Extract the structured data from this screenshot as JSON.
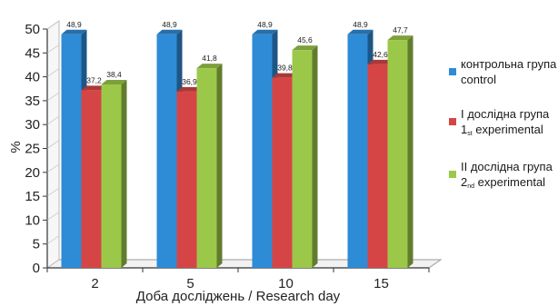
{
  "chart_data": {
    "type": "bar",
    "title": "",
    "xlabel": "Доба досліджень / Research day",
    "ylabel": "%",
    "ylim": [
      0,
      50
    ],
    "yticks": [
      0,
      5,
      10,
      15,
      20,
      25,
      30,
      35,
      40,
      45,
      50
    ],
    "categories": [
      "2",
      "5",
      "10",
      "15"
    ],
    "grid": false,
    "legend_position": "right",
    "series": [
      {
        "name": "контрольна група / control",
        "color": "#2e8bd6",
        "values": [
          48.9,
          48.9,
          48.9,
          48.9
        ],
        "labels": [
          "48,9",
          "48,9",
          "48,9",
          "48,9"
        ]
      },
      {
        "name": "I дослідна група / 1st experimental",
        "color": "#d64545",
        "values": [
          37.2,
          36.9,
          39.8,
          42.6
        ],
        "labels": [
          "37,2",
          "36,9",
          "39,8",
          "42,6"
        ]
      },
      {
        "name": "II дослідна група / 2nd experimental",
        "color": "#9cc84a",
        "values": [
          38.4,
          41.8,
          45.6,
          47.7
        ],
        "labels": [
          "38,4",
          "41,8",
          "45,6",
          "47,7"
        ]
      }
    ]
  },
  "legend": [
    {
      "color": "#2e8bd6",
      "line1": "контрольна група",
      "line2_main": "control",
      "line2_sub": "",
      "line2_rest": ""
    },
    {
      "color": "#d64545",
      "line1": "I дослідна група",
      "line2_main": "1",
      "line2_sub": "st",
      "line2_rest": " experimental"
    },
    {
      "color": "#9cc84a",
      "line1": "II дослідна група",
      "line2_main": "2",
      "line2_sub": "nd",
      "line2_rest": " experimental"
    }
  ]
}
